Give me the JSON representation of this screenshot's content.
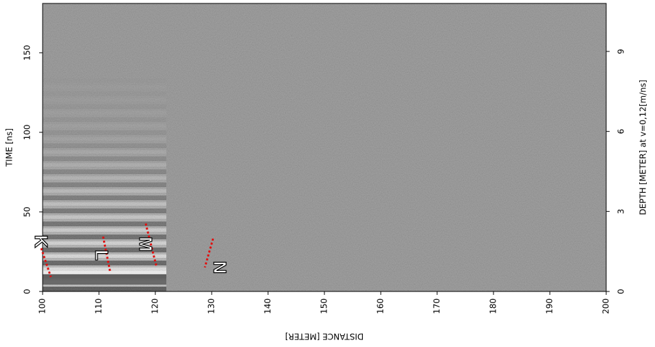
{
  "chart_data": {
    "type": "radargram",
    "x_label": "DISTANCE [METER]",
    "y_label": "TIME [ns]",
    "y2_label": "DEPTH [METER] at v=0,12[m/ns]",
    "xlim": [
      100,
      200
    ],
    "xticks": [
      100,
      110,
      120,
      130,
      140,
      150,
      160,
      170,
      180,
      190,
      200
    ],
    "ylim": [
      0,
      181
    ],
    "yticks": [
      0,
      50,
      100,
      150
    ],
    "y2lim": [
      0,
      10.8
    ],
    "y2ticks": [
      0,
      3,
      6,
      9
    ],
    "annotations": [
      "K",
      "L",
      "M",
      "N"
    ],
    "annotation_color": "#e01010"
  }
}
